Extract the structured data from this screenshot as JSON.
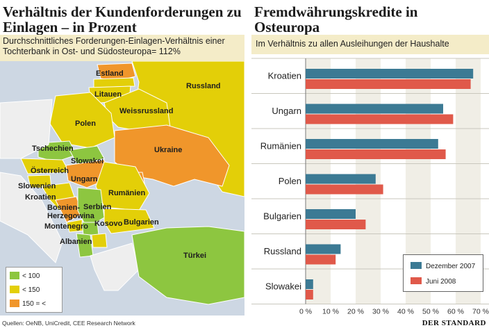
{
  "left_panel": {
    "title": "Verhältnis der Kundenforderungen zu Einlagen – in Prozent",
    "subtitle": "Durchschnittliches Forderungen-Einlagen-Verhältnis einer Tochterbank in Ost- und Südosteuropa= 112%",
    "countries": [
      "Estland",
      "Litauen",
      "Russland",
      "Weissrussland",
      "Polen",
      "Tschechien",
      "Slowakei",
      "Ukraine",
      "Österreich",
      "Ungarn",
      "Slowenien",
      "Kroatien",
      "Rumänien",
      "Bosnien-Herzegowina",
      "Serbien",
      "Montenegro",
      "Kosovo",
      "Bulgarien",
      "Albanien",
      "Türkei"
    ],
    "legend": [
      {
        "label": "< 100",
        "color": "#8dc640"
      },
      {
        "label": "< 150",
        "color": "#e3cf08"
      },
      {
        "label": "150 = <",
        "color": "#f0962b"
      }
    ]
  },
  "right_panel": {
    "title": "Fremdwährungskredite in Osteuropa",
    "subtitle": "Im Verhältnis zu allen Ausleihungen der Haushalte"
  },
  "chart_data": {
    "type": "bar",
    "orientation": "horizontal",
    "title": "Fremdwährungskredite in Osteuropa",
    "subtitle": "Im Verhältnis zu allen Ausleihungen der Haushalte",
    "categories": [
      "Kroatien",
      "Ungarn",
      "Rumänien",
      "Polen",
      "Bulgarien",
      "Russland",
      "Slowakei"
    ],
    "series": [
      {
        "name": "Dezember 2007",
        "color": "#3c7a94",
        "values": [
          67,
          55,
          53,
          28,
          20,
          14,
          3
        ]
      },
      {
        "name": "Juni 2008",
        "color": "#e0594a",
        "values": [
          66,
          59,
          56,
          31,
          24,
          12,
          3
        ]
      }
    ],
    "xlim": [
      0,
      70
    ],
    "ticks": [
      "0 %",
      "10 %",
      "20 %",
      "30 %",
      "40 %",
      "50 %",
      "60 %",
      "70 %"
    ],
    "legend_position": "bottom-right"
  },
  "footer": {
    "source": "Quellen: OeNB, UniCredit, CEE Research Network",
    "brand": "DER STANDARD"
  }
}
